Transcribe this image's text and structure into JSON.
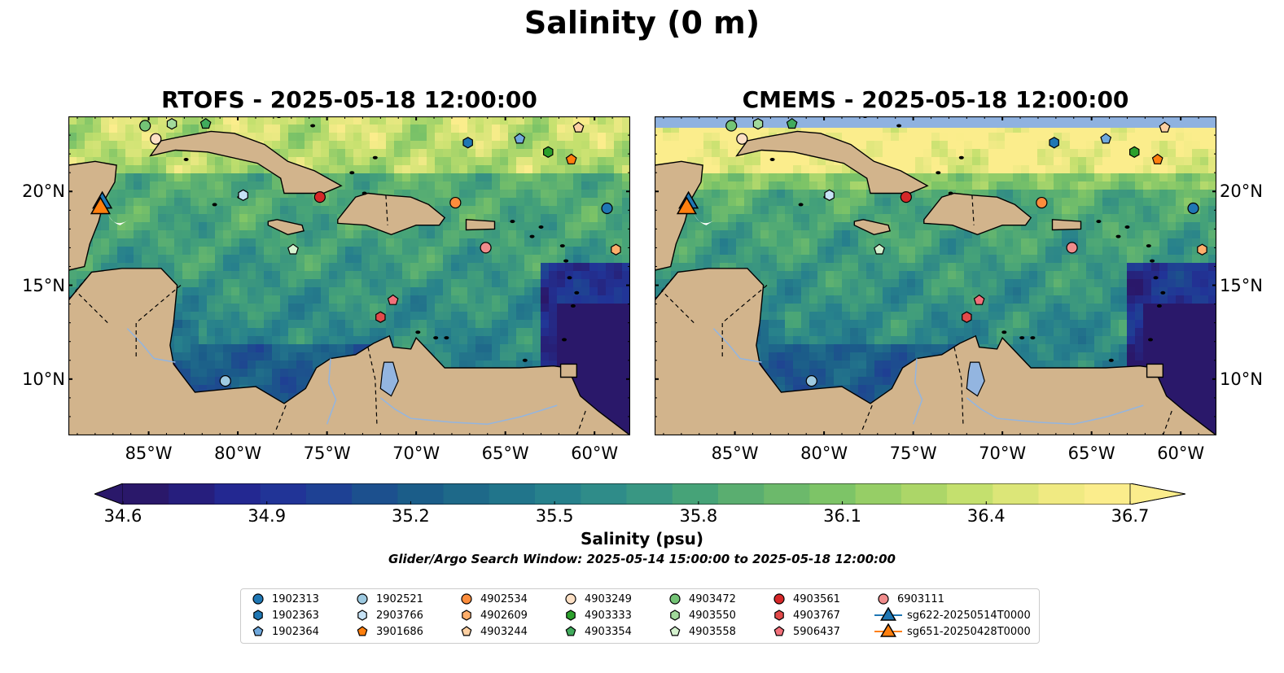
{
  "title": "Salinity (0 m)",
  "panels": [
    {
      "id": "rtofs",
      "title": "RTOFS - 2025-05-18 12:00:00"
    },
    {
      "id": "cmems",
      "title": "CMEMS - 2025-05-18 12:00:00"
    }
  ],
  "axes": {
    "lon_ticks": [
      "85°W",
      "80°W",
      "75°W",
      "70°W",
      "65°W",
      "60°W"
    ],
    "lon_values": [
      -85,
      -80,
      -75,
      -70,
      -65,
      -60
    ],
    "lat_ticks": [
      "20°N",
      "15°N",
      "10°N"
    ],
    "lat_values": [
      20,
      15,
      10
    ],
    "lon_range": [
      -89.5,
      -58.0
    ],
    "lat_range": [
      7.0,
      24.0
    ],
    "lat_label_side_left": true,
    "lat_label_side_right": true
  },
  "colorbar": {
    "label": "Salinity (psu)",
    "ticks": [
      "34.6",
      "34.9",
      "35.2",
      "35.5",
      "35.8",
      "36.1",
      "36.4",
      "36.7"
    ],
    "range": [
      34.6,
      36.7
    ],
    "colormap": "haline",
    "extend": "both"
  },
  "search_window": "Glider/Argo Search Window: 2025-05-14 15:00:00 to 2025-05-18 12:00:00",
  "colors": {
    "land": "#d2b48c",
    "lake": "#93b5e0",
    "nodata_band": "#8fb2e0",
    "low_salinity": "#2a1a6a",
    "high_salinity": "#f5ed8a"
  },
  "legend": {
    "items": [
      {
        "label": "1902313",
        "marker": "circle",
        "color": "#1f77b4"
      },
      {
        "label": "1902363",
        "marker": "hexagon",
        "color": "#1f77b4"
      },
      {
        "label": "1902364",
        "marker": "pentagon",
        "color": "#6fa8dc"
      },
      {
        "label": "1902521",
        "marker": "circle",
        "color": "#9ecae1"
      },
      {
        "label": "2903766",
        "marker": "hexagon",
        "color": "#c6e2f5"
      },
      {
        "label": "3901686",
        "marker": "pentagon",
        "color": "#ff7f0e"
      },
      {
        "label": "4902534",
        "marker": "circle",
        "color": "#fd8d3c"
      },
      {
        "label": "4902609",
        "marker": "hexagon",
        "color": "#fdae6b"
      },
      {
        "label": "4903244",
        "marker": "pentagon",
        "color": "#fdd0a2"
      },
      {
        "label": "4903249",
        "marker": "circle",
        "color": "#fde0c5"
      },
      {
        "label": "4903333",
        "marker": "hexagon",
        "color": "#2ca02c"
      },
      {
        "label": "4903354",
        "marker": "pentagon",
        "color": "#41ab5d"
      },
      {
        "label": "4903472",
        "marker": "circle",
        "color": "#74c476"
      },
      {
        "label": "4903550",
        "marker": "hexagon",
        "color": "#a1d99b"
      },
      {
        "label": "4903558",
        "marker": "pentagon",
        "color": "#d5f2cf"
      },
      {
        "label": "4903561",
        "marker": "circle",
        "color": "#d62728"
      },
      {
        "label": "4903767",
        "marker": "hexagon",
        "color": "#e34a4a"
      },
      {
        "label": "5906437",
        "marker": "pentagon",
        "color": "#f2707a"
      },
      {
        "label": "6903111",
        "marker": "circle",
        "color": "#f08c8c"
      },
      {
        "label": "sg622-20250514T0000",
        "marker": "triangle",
        "color": "#1f77b4"
      },
      {
        "label": "sg651-20250428T0000",
        "marker": "triangle",
        "color": "#ff7f0e"
      }
    ]
  },
  "observations": [
    {
      "id": "4903472",
      "lon": -85.2,
      "lat": 23.5
    },
    {
      "id": "4903550",
      "lon": -83.7,
      "lat": 23.6
    },
    {
      "id": "4903354",
      "lon": -81.8,
      "lat": 23.6
    },
    {
      "id": "4903249",
      "lon": -84.6,
      "lat": 22.8
    },
    {
      "id": "2903766",
      "lon": -79.7,
      "lat": 19.8
    },
    {
      "id": "4903561",
      "lon": -75.4,
      "lat": 19.7
    },
    {
      "id": "4902534",
      "lon": -67.8,
      "lat": 19.4
    },
    {
      "id": "1902363",
      "lon": -67.1,
      "lat": 22.6
    },
    {
      "id": "1902364",
      "lon": -64.2,
      "lat": 22.8
    },
    {
      "id": "4903333",
      "lon": -62.6,
      "lat": 22.1
    },
    {
      "id": "3901686",
      "lon": -61.3,
      "lat": 21.7
    },
    {
      "id": "4903244",
      "lon": -60.9,
      "lat": 23.4
    },
    {
      "id": "1902313",
      "lon": -59.3,
      "lat": 19.1
    },
    {
      "id": "4902609",
      "lon": -58.8,
      "lat": 16.9
    },
    {
      "id": "6903111",
      "lon": -66.1,
      "lat": 17.0
    },
    {
      "id": "4903558",
      "lon": -76.9,
      "lat": 16.9
    },
    {
      "id": "5906437",
      "lon": -71.3,
      "lat": 14.2
    },
    {
      "id": "4903767",
      "lon": -72.0,
      "lat": 13.3
    },
    {
      "id": "1902521",
      "lon": -80.7,
      "lat": 9.9
    }
  ],
  "gliders": [
    {
      "id": "sg622-20250514T0000",
      "lon": -87.6,
      "lat": 19.4
    },
    {
      "id": "sg651-20250428T0000",
      "lon": -87.7,
      "lat": 19.1
    }
  ]
}
